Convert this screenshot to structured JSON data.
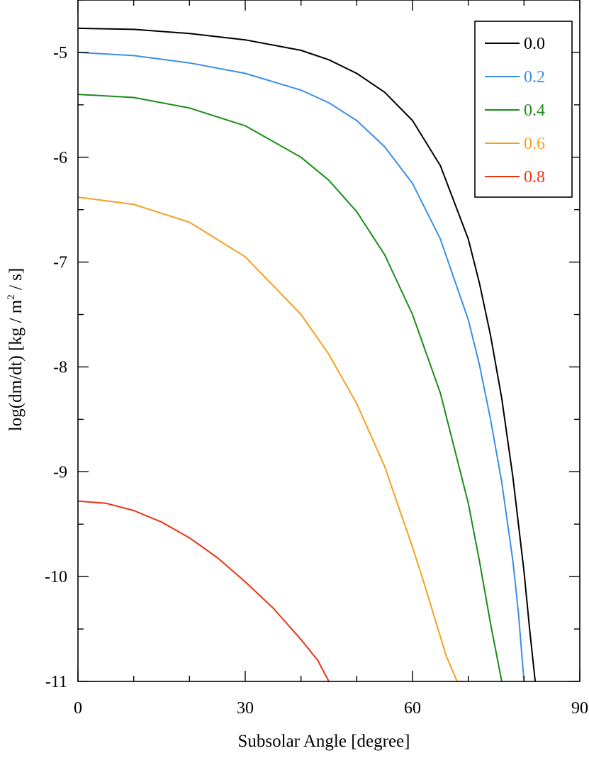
{
  "chart_data": {
    "type": "line",
    "xlabel": "Subsolar Angle [degree]",
    "ylabel": "log(dm/dt) [kg / m² / s]",
    "ylabel_parts": {
      "pre": "log(dm/dt) [kg / m",
      "sup": "2",
      "post": " / s]"
    },
    "xlim": [
      0,
      90
    ],
    "ylim": [
      -11,
      -4.5
    ],
    "xticks": [
      0,
      30,
      60,
      90
    ],
    "xtick_labels": [
      "0",
      "30",
      "60",
      "90"
    ],
    "yticks": [
      -11,
      -10,
      -9,
      -8,
      -7,
      -6,
      -5
    ],
    "ytick_labels": [
      "-11",
      "-10",
      "-9",
      "-8",
      "-7",
      "-6",
      "-5"
    ],
    "grid": false,
    "legend_position": "top-right",
    "series": [
      {
        "name": "0.0",
        "color": "#000000",
        "x": [
          0,
          10,
          20,
          30,
          40,
          45,
          50,
          55,
          60,
          65,
          70,
          72,
          74,
          76,
          78,
          80,
          81,
          82
        ],
        "y": [
          -4.77,
          -4.78,
          -4.82,
          -4.88,
          -4.98,
          -5.07,
          -5.2,
          -5.38,
          -5.65,
          -6.08,
          -6.78,
          -7.2,
          -7.7,
          -8.3,
          -9.05,
          -9.95,
          -10.5,
          -11.0
        ]
      },
      {
        "name": "0.2",
        "color": "#3a8ee6",
        "x": [
          0,
          10,
          20,
          30,
          40,
          45,
          50,
          55,
          60,
          65,
          70,
          72,
          74,
          76,
          78,
          79,
          80
        ],
        "y": [
          -5.0,
          -5.03,
          -5.1,
          -5.2,
          -5.36,
          -5.48,
          -5.65,
          -5.9,
          -6.25,
          -6.78,
          -7.55,
          -7.98,
          -8.5,
          -9.1,
          -9.85,
          -10.35,
          -11.0
        ]
      },
      {
        "name": "0.4",
        "color": "#1a8c1a",
        "x": [
          0,
          10,
          20,
          30,
          40,
          45,
          50,
          55,
          60,
          65,
          70,
          72,
          74,
          76
        ],
        "y": [
          -5.4,
          -5.43,
          -5.53,
          -5.7,
          -6.0,
          -6.22,
          -6.52,
          -6.93,
          -7.5,
          -8.25,
          -9.3,
          -9.85,
          -10.45,
          -11.0
        ]
      },
      {
        "name": "0.6",
        "color": "#f5a020",
        "x": [
          0,
          10,
          20,
          30,
          40,
          45,
          50,
          55,
          60,
          62,
          64,
          66,
          68,
          69.2
        ],
        "y": [
          -6.38,
          -6.45,
          -6.62,
          -6.95,
          -7.5,
          -7.88,
          -8.35,
          -8.95,
          -9.72,
          -10.05,
          -10.4,
          -10.75,
          -11.0,
          -11.0
        ]
      },
      {
        "name": "0.8",
        "color": "#ee3311",
        "x": [
          0,
          5,
          10,
          15,
          20,
          25,
          30,
          35,
          40,
          43,
          45
        ],
        "y": [
          -9.28,
          -9.3,
          -9.37,
          -9.48,
          -9.63,
          -9.82,
          -10.05,
          -10.3,
          -10.6,
          -10.8,
          -11.0
        ]
      }
    ]
  }
}
